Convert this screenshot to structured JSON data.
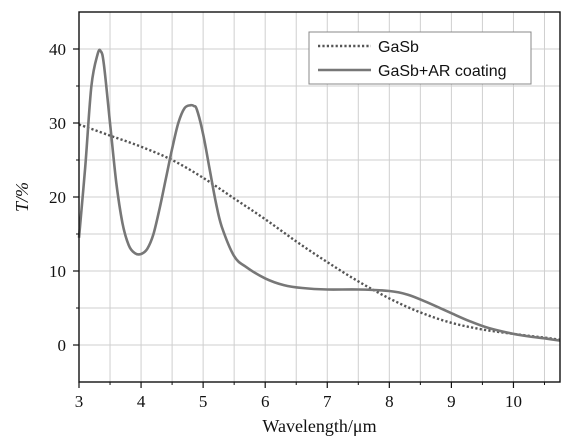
{
  "chart_data": {
    "type": "line",
    "title": "",
    "xlabel": "Wavelength/μm",
    "ylabel": "T/%",
    "xlim": [
      3,
      10.75
    ],
    "ylim": [
      -5,
      45
    ],
    "xticks": [
      "3",
      "4",
      "5",
      "6",
      "7",
      "8",
      "9",
      "10"
    ],
    "yticks": [
      "0",
      "10",
      "20",
      "30",
      "40"
    ],
    "grid": true,
    "legend_position": "top-right",
    "series": [
      {
        "name": "GaSb",
        "style": "dotted",
        "color": "#555555",
        "x": [
          3.0,
          3.5,
          4.0,
          4.5,
          5.0,
          5.5,
          6.0,
          6.5,
          7.0,
          7.5,
          8.0,
          8.5,
          9.0,
          9.5,
          10.0,
          10.5,
          10.75
        ],
        "y": [
          29.8,
          28.3,
          26.8,
          25.0,
          22.6,
          19.8,
          17.0,
          14.0,
          11.2,
          8.6,
          6.3,
          4.4,
          3.0,
          2.1,
          1.5,
          1.0,
          0.7
        ]
      },
      {
        "name": "GaSb+AR coating",
        "style": "solid",
        "color": "#777777",
        "x": [
          3.0,
          3.1,
          3.2,
          3.3,
          3.35,
          3.4,
          3.5,
          3.6,
          3.7,
          3.8,
          3.9,
          4.0,
          4.1,
          4.2,
          4.3,
          4.4,
          4.5,
          4.6,
          4.7,
          4.8,
          4.85,
          4.9,
          5.0,
          5.1,
          5.2,
          5.3,
          5.5,
          5.7,
          6.0,
          6.3,
          6.6,
          7.0,
          7.5,
          8.0,
          8.3,
          8.6,
          9.0,
          9.3,
          9.6,
          10.0,
          10.3,
          10.5,
          10.75
        ],
        "y": [
          14.5,
          24.0,
          35.0,
          39.3,
          39.7,
          38.0,
          30.0,
          22.0,
          16.5,
          13.5,
          12.4,
          12.3,
          13.0,
          15.0,
          18.5,
          22.5,
          26.5,
          30.0,
          32.0,
          32.4,
          32.3,
          31.8,
          28.5,
          24.0,
          19.5,
          16.0,
          12.0,
          10.5,
          9.0,
          8.1,
          7.7,
          7.5,
          7.5,
          7.3,
          6.8,
          5.8,
          4.3,
          3.2,
          2.3,
          1.5,
          1.1,
          0.9,
          0.6
        ]
      }
    ]
  }
}
